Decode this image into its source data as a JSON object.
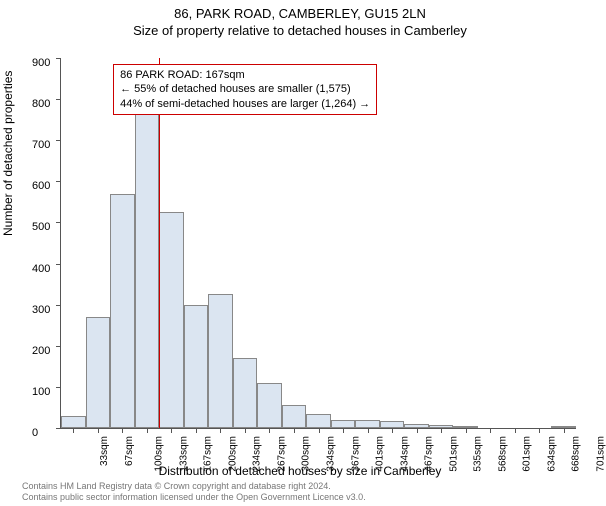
{
  "header": {
    "line1": "86, PARK ROAD, CAMBERLEY, GU15 2LN",
    "line2": "Size of property relative to detached houses in Camberley"
  },
  "ylabel": "Number of detached properties",
  "xlabel": "Distribution of detached houses by size in Camberley",
  "chart": {
    "type": "histogram",
    "ylim": [
      0,
      900
    ],
    "ytick_step": 100,
    "background_color": "#ffffff",
    "bar_fill": "#dbe5f1",
    "bar_stroke": "#888888",
    "ref_line_color": "#cc0000",
    "ref_line_sqm": 167,
    "categories": [
      "33sqm",
      "67sqm",
      "100sqm",
      "133sqm",
      "167sqm",
      "200sqm",
      "234sqm",
      "267sqm",
      "300sqm",
      "334sqm",
      "367sqm",
      "401sqm",
      "434sqm",
      "467sqm",
      "501sqm",
      "535sqm",
      "568sqm",
      "601sqm",
      "634sqm",
      "668sqm",
      "701sqm"
    ],
    "values": [
      30,
      270,
      570,
      810,
      525,
      300,
      325,
      170,
      110,
      55,
      35,
      20,
      20,
      18,
      10,
      8,
      2,
      0,
      0,
      0,
      1
    ]
  },
  "annotation": {
    "line1": "86 PARK ROAD: 167sqm",
    "line2": "← 55% of detached houses are smaller (1,575)",
    "line3": "44% of semi-detached houses are larger (1,264) →"
  },
  "footer": {
    "line1": "Contains HM Land Registry data © Crown copyright and database right 2024.",
    "line2": "Contains public sector information licensed under the Open Government Licence v3.0."
  }
}
